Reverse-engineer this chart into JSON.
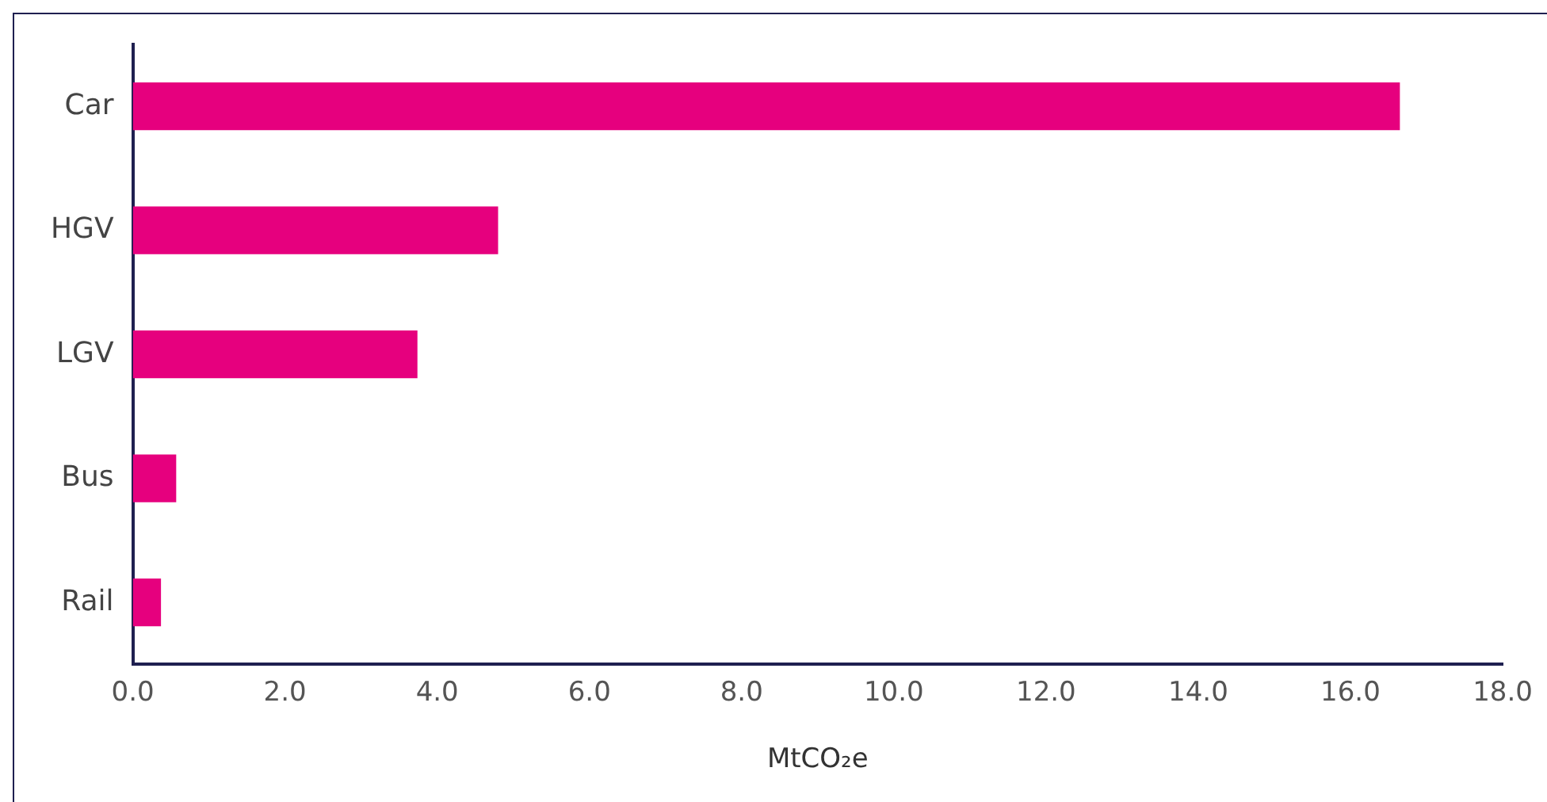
{
  "chart_data": {
    "type": "bar",
    "orientation": "horizontal",
    "xlabel": "MtCO₂e",
    "categories": [
      "Car",
      "HGV",
      "LGV",
      "Bus",
      "Rail"
    ],
    "values": [
      16.65,
      4.8,
      3.74,
      0.57,
      0.37
    ],
    "color": "#e6007e",
    "xlim": [
      0,
      18
    ],
    "xticks": [
      {
        "value": 0,
        "label": "0.0"
      },
      {
        "value": 2,
        "label": "2.0"
      },
      {
        "value": 4,
        "label": "4.0"
      },
      {
        "value": 6,
        "label": "6.0"
      },
      {
        "value": 8,
        "label": "8.0"
      },
      {
        "value": 10,
        "label": "10.0"
      },
      {
        "value": 12,
        "label": "12.0"
      },
      {
        "value": 14,
        "label": "14.0"
      },
      {
        "value": 16,
        "label": "16.0"
      },
      {
        "value": 18,
        "label": "18.0"
      }
    ],
    "grid": false,
    "legend": false
  }
}
